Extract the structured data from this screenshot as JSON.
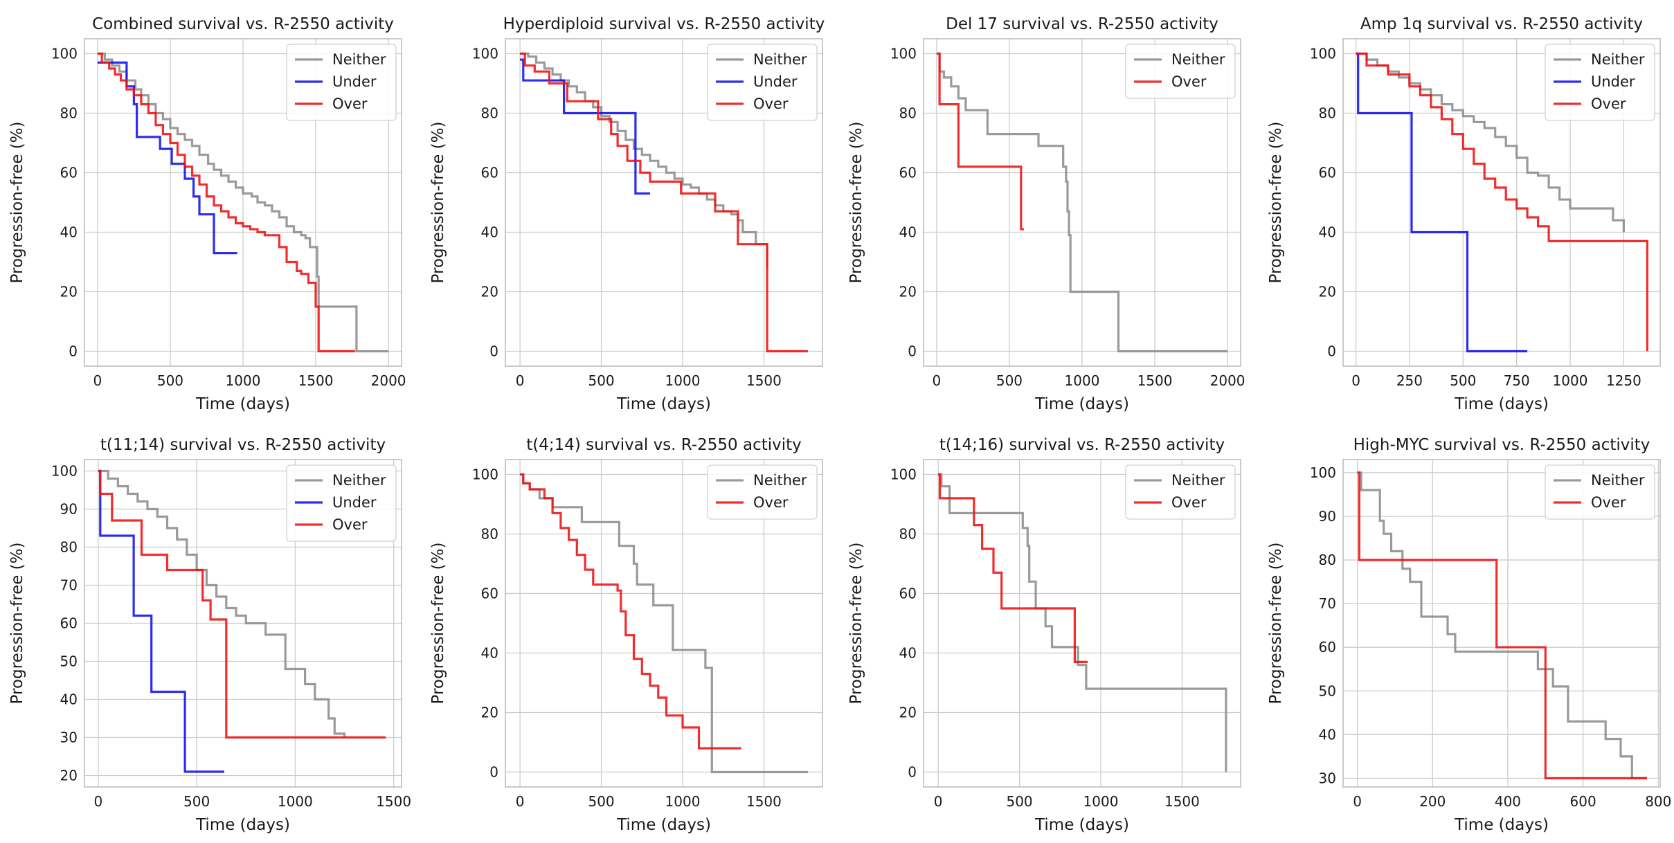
{
  "colors": {
    "Neither": "#8c8c8c",
    "Under": "#1010ee",
    "Over": "#ee1111",
    "grid": "#cccccc",
    "frame": "#bdbdbd"
  },
  "chart_data": [
    {
      "type": "line",
      "title": "Combined survival vs. R-2550 activity",
      "xlabel": "Time (days)",
      "ylabel": "Progression-free (%)",
      "xlim": [
        -90,
        2090
      ],
      "ylim": [
        -5,
        105
      ],
      "xticks": [
        0,
        500,
        1000,
        1500,
        2000
      ],
      "yticks": [
        0,
        20,
        40,
        60,
        80,
        100
      ],
      "grid": true,
      "legend": "top-right",
      "series": [
        {
          "name": "Neither",
          "x": [
            0,
            50,
            100,
            150,
            200,
            260,
            300,
            350,
            400,
            450,
            500,
            550,
            600,
            650,
            700,
            760,
            800,
            850,
            900,
            950,
            1000,
            1060,
            1100,
            1150,
            1200,
            1250,
            1300,
            1350,
            1400,
            1430,
            1460,
            1510,
            1520,
            1770,
            1780,
            2000
          ],
          "y": [
            100,
            98,
            96,
            94,
            91,
            88,
            86,
            83,
            80,
            78,
            75,
            73,
            71,
            69,
            66,
            63,
            61,
            59,
            57,
            55,
            53,
            52,
            50,
            49,
            47,
            45,
            42,
            40,
            39,
            38,
            35,
            25,
            15,
            15,
            0,
            0
          ]
        },
        {
          "name": "Under",
          "x": [
            0,
            150,
            200,
            250,
            270,
            430,
            510,
            600,
            660,
            700,
            800,
            960
          ],
          "y": [
            97,
            97,
            89,
            83,
            72,
            68,
            63,
            58,
            52,
            46,
            33,
            33
          ]
        },
        {
          "name": "Over",
          "x": [
            0,
            30,
            80,
            120,
            160,
            200,
            250,
            300,
            350,
            400,
            450,
            500,
            550,
            600,
            650,
            700,
            750,
            800,
            850,
            900,
            950,
            1000,
            1050,
            1100,
            1150,
            1250,
            1300,
            1370,
            1400,
            1450,
            1500,
            1520,
            1770
          ],
          "y": [
            100,
            97,
            95,
            93,
            91,
            88,
            86,
            83,
            80,
            76,
            73,
            70,
            66,
            62,
            59,
            56,
            52,
            49,
            47,
            45,
            43,
            42,
            41,
            40,
            39,
            35,
            30,
            27,
            26,
            23,
            15,
            0,
            0
          ]
        }
      ]
    },
    {
      "type": "line",
      "title": "Hyperdiploid survival vs. R-2550 activity",
      "xlabel": "Time (days)",
      "ylabel": "Progression-free (%)",
      "xlim": [
        -90,
        1860
      ],
      "ylim": [
        -5,
        105
      ],
      "xticks": [
        0,
        500,
        1000,
        1500
      ],
      "yticks": [
        0,
        20,
        40,
        60,
        80,
        100
      ],
      "grid": true,
      "legend": "top-right",
      "series": [
        {
          "name": "Neither",
          "x": [
            0,
            50,
            100,
            150,
            200,
            250,
            300,
            350,
            400,
            450,
            500,
            550,
            600,
            650,
            700,
            750,
            800,
            850,
            900,
            950,
            1000,
            1050,
            1100,
            1150,
            1200,
            1250,
            1300,
            1340,
            1370,
            1450,
            1520
          ],
          "y": [
            100,
            99,
            97,
            95,
            93,
            91,
            89,
            87,
            84,
            82,
            79,
            77,
            74,
            71,
            68,
            66,
            64,
            62,
            60,
            58,
            56,
            55,
            53,
            51,
            49,
            47,
            46,
            44,
            40,
            36,
            28
          ]
        },
        {
          "name": "Under",
          "x": [
            0,
            20,
            270,
            700,
            710,
            800
          ],
          "y": [
            98,
            91,
            80,
            80,
            53,
            53
          ]
        },
        {
          "name": "Over",
          "x": [
            0,
            30,
            90,
            180,
            290,
            480,
            560,
            600,
            660,
            740,
            800,
            990,
            1150,
            1200,
            1340,
            1520,
            1770
          ],
          "y": [
            100,
            96,
            94,
            90,
            84,
            78,
            73,
            69,
            64,
            60,
            57,
            53,
            53,
            47,
            36,
            0,
            0
          ]
        }
      ]
    },
    {
      "type": "line",
      "title": "Del 17 survival vs. R-2550 activity",
      "xlabel": "Time (days)",
      "ylabel": "Progression-free (%)",
      "xlim": [
        -90,
        2090
      ],
      "ylim": [
        -5,
        105
      ],
      "xticks": [
        0,
        500,
        1000,
        1500,
        2000
      ],
      "yticks": [
        0,
        20,
        40,
        60,
        80,
        100
      ],
      "grid": true,
      "legend": "top-right",
      "series": [
        {
          "name": "Neither",
          "x": [
            0,
            20,
            50,
            100,
            150,
            200,
            350,
            600,
            700,
            870,
            890,
            900,
            910,
            920,
            1250,
            2000
          ],
          "y": [
            100,
            94,
            92,
            89,
            85,
            81,
            73,
            73,
            69,
            62,
            57,
            47,
            39,
            20,
            0,
            0
          ]
        },
        {
          "name": "Over",
          "x": [
            0,
            20,
            150,
            580,
            600
          ],
          "y": [
            100,
            83,
            62,
            41,
            41
          ]
        }
      ]
    },
    {
      "type": "line",
      "title": "Amp 1q survival vs. R-2550 activity",
      "xlabel": "Time (days)",
      "ylabel": "Progression-free (%)",
      "xlim": [
        -60,
        1420
      ],
      "ylim": [
        -5,
        105
      ],
      "xticks": [
        0,
        250,
        500,
        750,
        1000,
        1250
      ],
      "yticks": [
        0,
        20,
        40,
        60,
        80,
        100
      ],
      "grid": true,
      "legend": "top-right",
      "series": [
        {
          "name": "Neither",
          "x": [
            0,
            50,
            100,
            150,
            200,
            250,
            300,
            350,
            400,
            450,
            500,
            550,
            600,
            650,
            700,
            750,
            800,
            850,
            900,
            950,
            1000,
            1100,
            1200,
            1250
          ],
          "y": [
            100,
            98,
            96,
            94,
            92,
            90,
            88,
            86,
            83,
            81,
            79,
            77,
            75,
            72,
            69,
            65,
            60,
            59,
            55,
            51,
            48,
            48,
            44,
            40
          ]
        },
        {
          "name": "Under",
          "x": [
            0,
            10,
            260,
            520,
            800
          ],
          "y": [
            100,
            80,
            40,
            0,
            0
          ]
        },
        {
          "name": "Over",
          "x": [
            0,
            50,
            150,
            250,
            300,
            350,
            400,
            450,
            500,
            550,
            600,
            650,
            700,
            750,
            800,
            850,
            900,
            1360
          ],
          "y": [
            100,
            96,
            93,
            89,
            86,
            82,
            78,
            73,
            68,
            63,
            58,
            55,
            51,
            48,
            45,
            42,
            37,
            0
          ]
        }
      ]
    },
    {
      "type": "line",
      "title": "t(11;14) survival vs. R-2550 activity",
      "xlabel": "Time (days)",
      "ylabel": "Progression-free (%)",
      "xlim": [
        -70,
        1540
      ],
      "ylim": [
        17,
        103
      ],
      "xticks": [
        0,
        500,
        1000,
        1500
      ],
      "yticks": [
        20,
        30,
        40,
        50,
        60,
        70,
        80,
        90,
        100
      ],
      "grid": true,
      "legend": "top-right",
      "series": [
        {
          "name": "Neither",
          "x": [
            0,
            50,
            100,
            150,
            200,
            250,
            300,
            350,
            400,
            450,
            500,
            550,
            600,
            650,
            700,
            750,
            850,
            950,
            1050,
            1100,
            1170,
            1200,
            1250
          ],
          "y": [
            100,
            98,
            96,
            94,
            92,
            90,
            88,
            85,
            82,
            78,
            74,
            70,
            67,
            64,
            62,
            60,
            57,
            48,
            44,
            40,
            35,
            31,
            30
          ]
        },
        {
          "name": "Under",
          "x": [
            0,
            10,
            180,
            270,
            440,
            450,
            640
          ],
          "y": [
            100,
            83,
            62,
            42,
            21,
            21,
            21
          ]
        },
        {
          "name": "Over",
          "x": [
            0,
            10,
            70,
            220,
            350,
            530,
            570,
            650,
            1460
          ],
          "y": [
            100,
            94,
            87,
            78,
            74,
            66,
            61,
            30,
            30
          ]
        }
      ]
    },
    {
      "type": "line",
      "title": "t(4;14) survival vs. R-2550 activity",
      "xlabel": "Time (days)",
      "ylabel": "Progression-free (%)",
      "xlim": [
        -90,
        1860
      ],
      "ylim": [
        -5,
        105
      ],
      "xticks": [
        0,
        500,
        1000,
        1500
      ],
      "yticks": [
        0,
        20,
        40,
        60,
        80,
        100
      ],
      "grid": true,
      "legend": "top-right",
      "series": [
        {
          "name": "Neither",
          "x": [
            0,
            20,
            60,
            120,
            200,
            380,
            610,
            700,
            720,
            820,
            940,
            1140,
            1180,
            1770
          ],
          "y": [
            100,
            97,
            95,
            92,
            89,
            84,
            76,
            70,
            63,
            56,
            41,
            35,
            0,
            0
          ]
        },
        {
          "name": "Over",
          "x": [
            0,
            20,
            60,
            150,
            200,
            250,
            300,
            350,
            400,
            450,
            600,
            620,
            650,
            700,
            750,
            800,
            850,
            900,
            1000,
            1100,
            1360
          ],
          "y": [
            100,
            97,
            95,
            92,
            87,
            82,
            78,
            73,
            68,
            63,
            61,
            54,
            46,
            38,
            33,
            29,
            25,
            19,
            15,
            8,
            8
          ]
        }
      ]
    },
    {
      "type": "line",
      "title": "t(14;16) survival vs. R-2550 activity",
      "xlabel": "Time (days)",
      "ylabel": "Progression-free (%)",
      "xlim": [
        -90,
        1860
      ],
      "ylim": [
        -5,
        105
      ],
      "xticks": [
        0,
        500,
        1000,
        1500
      ],
      "yticks": [
        0,
        20,
        40,
        60,
        80,
        100
      ],
      "grid": true,
      "legend": "top-right",
      "series": [
        {
          "name": "Neither",
          "x": [
            0,
            20,
            70,
            360,
            520,
            550,
            560,
            600,
            660,
            700,
            860,
            910,
            1770
          ],
          "y": [
            100,
            96,
            87,
            87,
            82,
            76,
            64,
            55,
            49,
            42,
            36,
            28,
            0
          ]
        },
        {
          "name": "Over",
          "x": [
            0,
            10,
            220,
            270,
            340,
            390,
            840,
            920
          ],
          "y": [
            100,
            92,
            83,
            75,
            67,
            55,
            37,
            37
          ]
        }
      ]
    },
    {
      "type": "line",
      "title": "High-MYC survival vs. R-2550 activity",
      "xlabel": "Time (days)",
      "ylabel": "Progression-free (%)",
      "xlim": [
        -38,
        805
      ],
      "ylim": [
        28,
        103
      ],
      "xticks": [
        0,
        200,
        400,
        600,
        800
      ],
      "yticks": [
        30,
        40,
        50,
        60,
        70,
        80,
        90,
        100
      ],
      "grid": true,
      "legend": "top-right",
      "series": [
        {
          "name": "Neither",
          "x": [
            0,
            10,
            60,
            70,
            90,
            120,
            140,
            170,
            240,
            260,
            450,
            480,
            520,
            560,
            660,
            700,
            730,
            770
          ],
          "y": [
            100,
            96,
            89,
            86,
            82,
            78,
            75,
            67,
            63,
            59,
            59,
            55,
            51,
            43,
            39,
            35,
            30,
            30
          ]
        },
        {
          "name": "Over",
          "x": [
            0,
            5,
            370,
            500,
            770
          ],
          "y": [
            100,
            80,
            60,
            30,
            30
          ]
        }
      ]
    }
  ]
}
